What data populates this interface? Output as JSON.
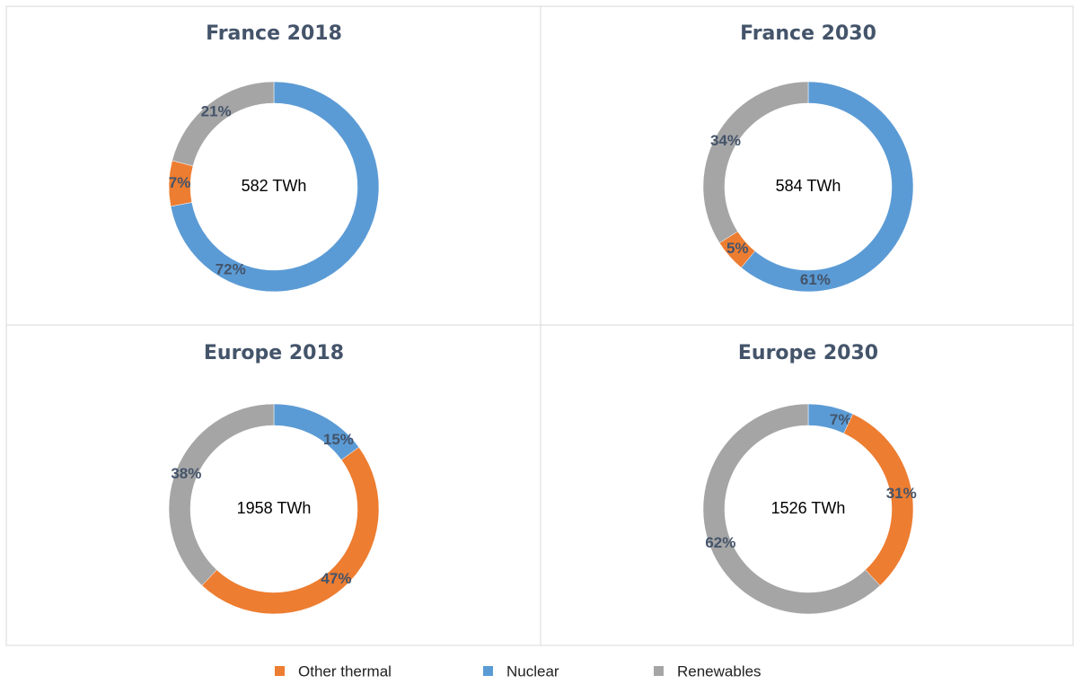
{
  "chart_data": [
    {
      "type": "donut",
      "title": "France 2018",
      "center_label": "582 TWh",
      "categories": [
        "Nuclear",
        "Other thermal",
        "Renewables"
      ],
      "colors": [
        "#5b9bd5",
        "#ed7d31",
        "#a5a5a5"
      ],
      "values": [
        72,
        7,
        21
      ],
      "value_labels": [
        "72%",
        "7%",
        "21%"
      ]
    },
    {
      "type": "donut",
      "title": "France 2030",
      "center_label": "584 TWh",
      "categories": [
        "Nuclear",
        "Other thermal",
        "Renewables"
      ],
      "colors": [
        "#5b9bd5",
        "#ed7d31",
        "#a5a5a5"
      ],
      "values": [
        61,
        5,
        34
      ],
      "value_labels": [
        "61%",
        "5%",
        "34%"
      ]
    },
    {
      "type": "donut",
      "title": "Europe 2018",
      "center_label": "1958 TWh",
      "categories": [
        "Nuclear",
        "Other thermal",
        "Renewables"
      ],
      "colors": [
        "#5b9bd5",
        "#ed7d31",
        "#a5a5a5"
      ],
      "values": [
        15,
        47,
        38
      ],
      "value_labels": [
        "15%",
        "47%",
        "38%"
      ]
    },
    {
      "type": "donut",
      "title": "Europe 2030",
      "center_label": "1526 TWh",
      "categories": [
        "Nuclear",
        "Other thermal",
        "Renewables"
      ],
      "colors": [
        "#5b9bd5",
        "#ed7d31",
        "#a5a5a5"
      ],
      "values": [
        7,
        31,
        62
      ],
      "value_labels": [
        "7%",
        "31%",
        "62%"
      ]
    }
  ]
}
